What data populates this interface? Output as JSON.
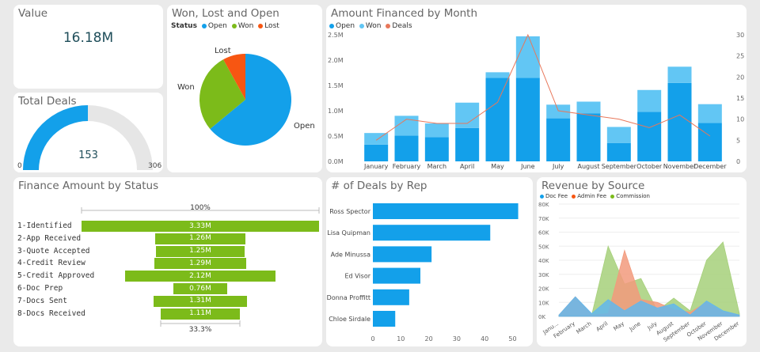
{
  "value_card": {
    "title": "Value",
    "value": "16.18M"
  },
  "total_deals": {
    "title": "Total Deals",
    "value": "153",
    "min": "0",
    "max": "306",
    "fraction": 0.5
  },
  "won_lost_open": {
    "title": "Won, Lost and Open",
    "legend_title": "Status",
    "legend": [
      "Open",
      "Won",
      "Lost"
    ],
    "labels": {
      "lost": "Lost",
      "won": "Won",
      "open": "Open"
    },
    "colors": {
      "open": "#13a0ea",
      "won": "#7cbb1a",
      "lost": "#f75612"
    }
  },
  "amount_by_month": {
    "title": "Amount Financed by Month",
    "legend": [
      "Open",
      "Won",
      "Deals"
    ],
    "colors": {
      "open": "#13a0ea",
      "won": "#62c6f4",
      "deals": "#e8775a"
    }
  },
  "finance_by_status": {
    "title": "Finance Amount by Status",
    "top_label": "100%",
    "bottom_label": "33.3%",
    "stages": [
      {
        "label": "1-Identified",
        "value": "3.33M",
        "amount": 3.33
      },
      {
        "label": "2-App Received",
        "value": "1.26M",
        "amount": 1.26
      },
      {
        "label": "3-Quote Accepted",
        "value": "1.25M",
        "amount": 1.25
      },
      {
        "label": "4-Credit Review",
        "value": "1.29M",
        "amount": 1.29
      },
      {
        "label": "5-Credit Approved",
        "value": "2.12M",
        "amount": 2.12
      },
      {
        "label": "6-Doc Prep",
        "value": "0.76M",
        "amount": 0.76
      },
      {
        "label": "7-Docs Sent",
        "value": "1.31M",
        "amount": 1.31
      },
      {
        "label": "8-Docs Received",
        "value": "1.11M",
        "amount": 1.11
      }
    ]
  },
  "deals_by_rep": {
    "title": "# of Deals by Rep"
  },
  "revenue_by_source": {
    "title": "Revenue by Source",
    "legend": [
      "Doc Fee",
      "Admin Fee",
      "Commission"
    ],
    "colors": {
      "doc": "#62b7ec",
      "admin": "#f29a7c",
      "commission": "#a6d07a"
    }
  },
  "chart_data": [
    {
      "type": "pie",
      "title": "Won, Lost and Open",
      "categories": [
        "Open",
        "Won",
        "Lost"
      ],
      "values": [
        64,
        28,
        8
      ]
    },
    {
      "type": "bar",
      "title": "Amount Financed by Month",
      "categories": [
        "January",
        "February",
        "March",
        "April",
        "May",
        "June",
        "July",
        "August",
        "September",
        "October",
        "November",
        "December"
      ],
      "series": [
        {
          "name": "Open",
          "values": [
            0.33,
            0.51,
            0.48,
            0.66,
            1.65,
            1.65,
            0.85,
            0.95,
            0.36,
            0.98,
            1.55,
            0.76
          ]
        },
        {
          "name": "Won",
          "values": [
            0.23,
            0.39,
            0.27,
            0.5,
            0.11,
            0.82,
            0.27,
            0.23,
            0.32,
            0.43,
            0.32,
            0.37
          ]
        },
        {
          "name": "Deals",
          "values": [
            5,
            10,
            9,
            9,
            14,
            30,
            12,
            11,
            10,
            8,
            11,
            6
          ]
        }
      ],
      "ylim": [
        0,
        2.5
      ],
      "yticks": [
        "0.0M",
        "0.5M",
        "1.0M",
        "1.5M",
        "2.0M",
        "2.5M"
      ],
      "ylim_right": [
        0,
        30
      ],
      "yticks_right": [
        "0",
        "5",
        "10",
        "15",
        "20",
        "25",
        "30"
      ]
    },
    {
      "type": "bar",
      "title": "# of Deals by Rep",
      "categories": [
        "Ross Spector",
        "Lisa Quipman",
        "Ade Minussa",
        "Ed Visor",
        "Donna Proffitt",
        "Chloe Sirdale"
      ],
      "values": [
        52,
        42,
        21,
        17,
        13,
        8
      ],
      "xlim": [
        0,
        55
      ],
      "xticks": [
        "0",
        "10",
        "20",
        "30",
        "40",
        "50"
      ]
    },
    {
      "type": "area",
      "title": "Revenue by Source",
      "categories": [
        "Janu...",
        "February",
        "March",
        "April",
        "May",
        "June",
        "July",
        "August",
        "September",
        "October",
        "November",
        "December"
      ],
      "series": [
        {
          "name": "Doc Fee",
          "values": [
            1000,
            14000,
            2000,
            12000,
            4000,
            11000,
            6000,
            9000,
            1000,
            11000,
            4000,
            1000
          ]
        },
        {
          "name": "Admin Fee",
          "values": [
            1000,
            14000,
            1000,
            2000,
            47000,
            12000,
            10000,
            5000,
            3000,
            10000,
            3000,
            1000
          ]
        },
        {
          "name": "Commission",
          "values": [
            1000,
            1000,
            1000,
            50000,
            23000,
            27000,
            4000,
            13000,
            4000,
            40000,
            53000,
            2000
          ]
        }
      ],
      "ylim": [
        0,
        80000
      ],
      "yticks": [
        "0K",
        "10K",
        "20K",
        "30K",
        "40K",
        "50K",
        "60K",
        "70K",
        "80K"
      ]
    }
  ]
}
